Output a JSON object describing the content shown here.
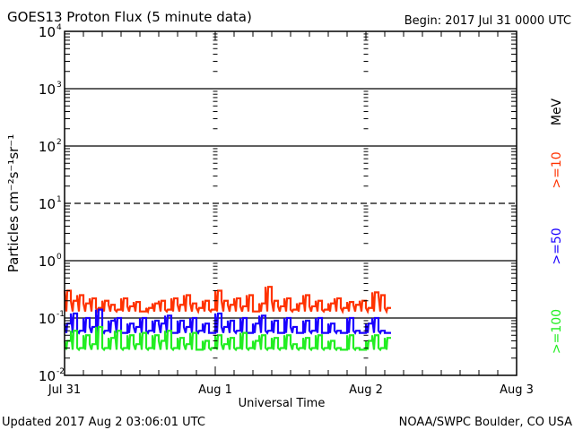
{
  "chart_data": {
    "type": "line",
    "title": "GOES13 Proton Flux (5 minute data)",
    "begin_label": "Begin: 2017 Jul 31 0000 UTC",
    "xlabel": "Universal Time",
    "ylabel": "Particles cm⁻²s⁻¹sr⁻¹",
    "yscale": "log",
    "ylim": [
      0.01,
      10000
    ],
    "y_ticks": [
      {
        "base": "10",
        "exp": "4",
        "value": 10000
      },
      {
        "base": "10",
        "exp": "3",
        "value": 1000
      },
      {
        "base": "10",
        "exp": "2",
        "value": 100
      },
      {
        "base": "10",
        "exp": "1",
        "value": 10
      },
      {
        "base": "10",
        "exp": "0",
        "value": 1
      },
      {
        "base": "10",
        "exp": "-1",
        "value": 0.1
      },
      {
        "base": "10",
        "exp": "-2",
        "value": 0.01
      }
    ],
    "x_range_hours": [
      0,
      72
    ],
    "x_ticks": [
      {
        "label": "Jul 31",
        "hour": 0
      },
      {
        "label": "Aug 1",
        "hour": 24
      },
      {
        "label": "Aug 2",
        "hour": 48
      },
      {
        "label": "Aug 3",
        "hour": 72
      }
    ],
    "grid": {
      "solid": [
        1000,
        100,
        1,
        0.1
      ],
      "dashed": [
        10
      ]
    },
    "units_label": "MeV",
    "x_hours_step": 1,
    "series": [
      {
        "name": ">=10",
        "color": "#ff3300",
        "values": [
          0.3,
          0.2,
          0.25,
          0.18,
          0.22,
          0.15,
          0.2,
          0.17,
          0.14,
          0.22,
          0.16,
          0.19,
          0.13,
          0.15,
          0.18,
          0.2,
          0.14,
          0.22,
          0.17,
          0.25,
          0.18,
          0.15,
          0.2,
          0.14,
          0.3,
          0.2,
          0.17,
          0.22,
          0.16,
          0.25,
          0.13,
          0.18,
          0.35,
          0.2,
          0.16,
          0.22,
          0.14,
          0.18,
          0.25,
          0.16,
          0.2,
          0.14,
          0.18,
          0.22,
          0.15,
          0.19,
          0.17,
          0.2,
          0.15,
          0.28,
          0.25,
          0.15
        ]
      },
      {
        "name": ">=50",
        "color": "#1a00ff",
        "values": [
          0.08,
          0.12,
          0.06,
          0.1,
          0.07,
          0.14,
          0.06,
          0.09,
          0.1,
          0.055,
          0.08,
          0.07,
          0.1,
          0.06,
          0.09,
          0.08,
          0.11,
          0.055,
          0.09,
          0.07,
          0.1,
          0.06,
          0.08,
          0.055,
          0.12,
          0.07,
          0.09,
          0.06,
          0.1,
          0.055,
          0.08,
          0.11,
          0.06,
          0.09,
          0.055,
          0.1,
          0.07,
          0.055,
          0.09,
          0.06,
          0.1,
          0.055,
          0.08,
          0.06,
          0.055,
          0.1,
          0.06,
          0.055,
          0.08,
          0.1,
          0.06,
          0.055
        ]
      },
      {
        "name": ">=100",
        "color": "#22ee22",
        "values": [
          0.04,
          0.06,
          0.03,
          0.05,
          0.035,
          0.07,
          0.03,
          0.045,
          0.06,
          0.03,
          0.05,
          0.035,
          0.055,
          0.03,
          0.05,
          0.04,
          0.06,
          0.03,
          0.045,
          0.035,
          0.055,
          0.028,
          0.04,
          0.03,
          0.05,
          0.035,
          0.045,
          0.03,
          0.055,
          0.03,
          0.04,
          0.05,
          0.03,
          0.045,
          0.03,
          0.05,
          0.035,
          0.03,
          0.045,
          0.03,
          0.05,
          0.03,
          0.04,
          0.03,
          0.028,
          0.05,
          0.03,
          0.028,
          0.04,
          0.05,
          0.03,
          0.045
        ]
      }
    ]
  },
  "footer": {
    "updated": "Updated 2017 Aug  2 03:06:01 UTC",
    "source": "NOAA/SWPC Boulder, CO USA"
  }
}
